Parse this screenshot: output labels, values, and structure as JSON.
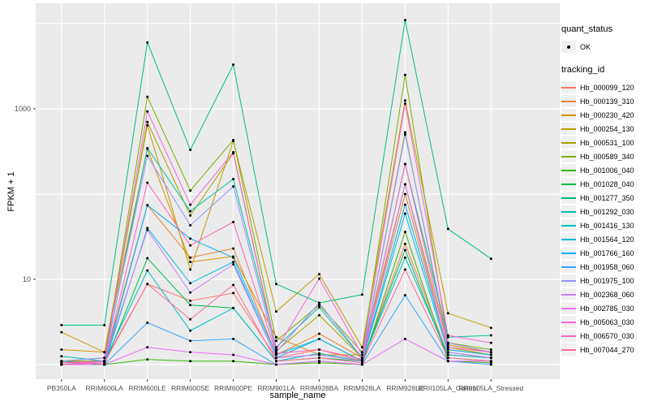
{
  "figure": {
    "background": "#FFFFFF",
    "panel_background": "#EBEBEB",
    "gridline_color": "#FFFFFF",
    "axis_text_color": "#4D4D4D",
    "point_color": "#000000"
  },
  "axes": {
    "x_title": "sample_name",
    "y_title": "FPKM + 1",
    "y_scale": "log10",
    "y_tick_labels": [
      "10",
      "1000"
    ],
    "y_tick_values": [
      10,
      1000
    ],
    "y_gridlines": [
      1,
      10,
      100,
      1000,
      10000
    ]
  },
  "legend": {
    "quant_status_title": "quant_status",
    "quant_status_items": [
      {
        "label": "OK",
        "shape": "black-point"
      }
    ],
    "tracking_id_title": "tracking_id"
  },
  "chart_data": {
    "type": "line",
    "title": "",
    "xlabel": "sample_name",
    "ylabel": "FPKM + 1",
    "y_scale": "log10",
    "ylim": [
      0.65,
      17000
    ],
    "grid": "major-white-on-gray",
    "legend_position": "right",
    "marker": "small black point (quant_status = OK) at every observation",
    "categories": [
      "PB350LA",
      "RRIM600LA",
      "RRIM600LE",
      "RRIM600SE",
      "RRIM600PE",
      "RRIM901LA",
      "RRIM928BA",
      "RRIM928LA",
      "RRIM928LE",
      "RRII105LA_Control",
      "RRII105LA_Stressed"
    ],
    "series": [
      {
        "id": "Hb_000099_120",
        "color": "#F8766D",
        "values": [
          1.1,
          1.1,
          8.8,
          5.6,
          6.9,
          1.2,
          1.5,
          1.1,
          26,
          1.3,
          1.2
        ]
      },
      {
        "id": "Hb_000139_310",
        "color": "#EA8331",
        "values": [
          1.0,
          1.1,
          74,
          18,
          23,
          1.3,
          2.3,
          1.2,
          100,
          1.5,
          1.3
        ]
      },
      {
        "id": "Hb_000230_420",
        "color": "#D89000",
        "values": [
          1.5,
          1.4,
          340,
          16,
          18.5,
          2.1,
          1.3,
          1.3,
          130,
          1.7,
          1.4
        ]
      },
      {
        "id": "Hb_000254_130",
        "color": "#C09B00",
        "values": [
          2.4,
          1.4,
          640,
          13,
          420,
          4.2,
          11.5,
          1.6,
          1250,
          4.0,
          2.7
        ]
      },
      {
        "id": "Hb_000531_100",
        "color": "#A3A500",
        "values": [
          1.1,
          1.2,
          700,
          56,
          300,
          1.45,
          3.8,
          1.2,
          530,
          1.6,
          1.3
        ]
      },
      {
        "id": "Hb_000589_340",
        "color": "#7CAE00",
        "values": [
          1.1,
          1.1,
          1380,
          110,
          430,
          1.9,
          5.0,
          1.4,
          2500,
          1.8,
          1.5
        ]
      },
      {
        "id": "Hb_001006_040",
        "color": "#39B600",
        "values": [
          1.0,
          1.0,
          1.15,
          1.1,
          1.1,
          1.0,
          1.05,
          1.0,
          36,
          1.1,
          1.05
        ]
      },
      {
        "id": "Hb_001028_040",
        "color": "#00BB4E",
        "values": [
          1.1,
          1.0,
          17.7,
          5.0,
          4.6,
          1.1,
          1.2,
          1.1,
          22,
          1.2,
          1.1
        ]
      },
      {
        "id": "Hb_001277_350",
        "color": "#00BF7D",
        "values": [
          2.9,
          2.9,
          6000,
          330,
          3300,
          8.8,
          5.3,
          6.6,
          11000,
          39,
          17.4
        ]
      },
      {
        "id": "Hb_001292_030",
        "color": "#00C1A3",
        "values": [
          1.25,
          1.1,
          345,
          63,
          150,
          1.6,
          4.7,
          1.2,
          225,
          2.1,
          2.2
        ]
      },
      {
        "id": "Hb_001416_130",
        "color": "#00BFC4",
        "values": [
          1.0,
          1.1,
          12.7,
          2.5,
          4.6,
          1.1,
          1.35,
          1.1,
          18,
          1.3,
          1.2
        ]
      },
      {
        "id": "Hb_001564_120",
        "color": "#00BADE",
        "values": [
          1.0,
          1.0,
          40,
          9,
          16,
          1.2,
          2.0,
          1.1,
          59,
          1.4,
          1.2
        ]
      },
      {
        "id": "Hb_001766_160",
        "color": "#00B0F6",
        "values": [
          1.0,
          1.0,
          74,
          30,
          18,
          1.3,
          2.0,
          1.1,
          75,
          1.5,
          1.3
        ]
      },
      {
        "id": "Hb_001958_060",
        "color": "#35A2FF",
        "values": [
          1.0,
          1.0,
          3.1,
          1.9,
          2.0,
          1.0,
          1.1,
          1.0,
          6.5,
          1.1,
          1.0
        ]
      },
      {
        "id": "Hb_001975_100",
        "color": "#9590FF",
        "values": [
          1.1,
          1.2,
          280,
          43,
          123,
          1.4,
          5.3,
          1.2,
          500,
          1.8,
          1.4
        ]
      },
      {
        "id": "Hb_002368_060",
        "color": "#C77CFF",
        "values": [
          1.0,
          1.1,
          38,
          7,
          15,
          1.2,
          1.3,
          1.1,
          130,
          1.4,
          1.2
        ]
      },
      {
        "id": "Hb_002785_030",
        "color": "#E76BF3",
        "values": [
          1.0,
          1.0,
          1.6,
          1.4,
          1.3,
          1.0,
          1.1,
          1.0,
          2.0,
          1.1,
          1.1
        ]
      },
      {
        "id": "Hb_005063_030",
        "color": "#FA62DB",
        "values": [
          1.05,
          1.1,
          930,
          75,
          310,
          1.5,
          10.2,
          1.3,
          1150,
          2.2,
          1.8
        ]
      },
      {
        "id": "Hb_006570_030",
        "color": "#FF62BC",
        "values": [
          1.05,
          1.05,
          136,
          25,
          47,
          1.35,
          1.5,
          1.15,
          225,
          1.6,
          1.4
        ]
      },
      {
        "id": "Hb_007044_270",
        "color": "#FF6A98",
        "values": [
          1.0,
          1.05,
          8.8,
          3.4,
          8.6,
          1.1,
          1.2,
          1.05,
          13,
          1.2,
          1.1
        ]
      }
    ]
  }
}
